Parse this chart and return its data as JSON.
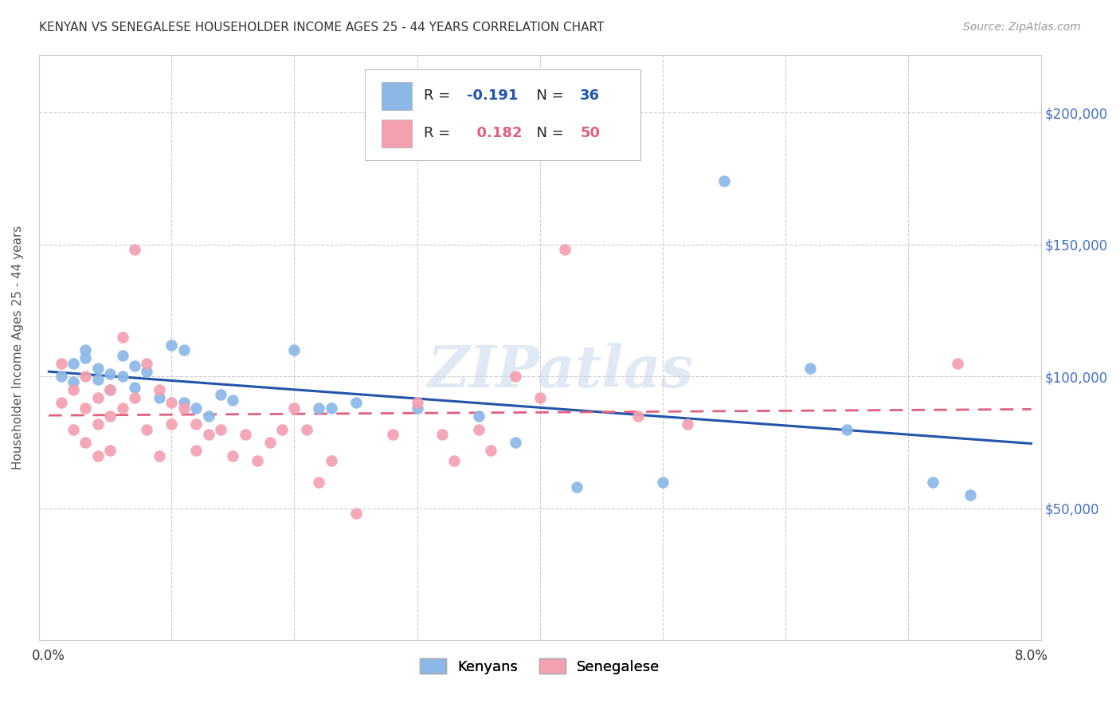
{
  "title": "KENYAN VS SENEGALESE HOUSEHOLDER INCOME AGES 25 - 44 YEARS CORRELATION CHART",
  "source": "Source: ZipAtlas.com",
  "ylabel": "Householder Income Ages 25 - 44 years",
  "xlim": [
    0.0,
    0.08
  ],
  "ylim": [
    0,
    220000
  ],
  "yticks": [
    50000,
    100000,
    150000,
    200000
  ],
  "ytick_labels": [
    "$50,000",
    "$100,000",
    "$150,000",
    "$200,000"
  ],
  "xticks": [
    0.0,
    0.01,
    0.02,
    0.03,
    0.04,
    0.05,
    0.06,
    0.07,
    0.08
  ],
  "xtick_labels": [
    "0.0%",
    "",
    "",
    "",
    "",
    "",
    "",
    "",
    "8.0%"
  ],
  "kenyan_color": "#8CB8E8",
  "senegalese_color": "#F4A0B0",
  "kenyan_line_color": "#2255AA",
  "senegalese_line_color": "#E06080",
  "kenyan_R": -0.191,
  "kenyan_N": 36,
  "senegalese_R": 0.182,
  "senegalese_N": 50,
  "watermark": "ZIPatlas",
  "background_color": "#ffffff",
  "kenyan_x": [
    0.001,
    0.002,
    0.002,
    0.003,
    0.003,
    0.004,
    0.004,
    0.005,
    0.005,
    0.006,
    0.006,
    0.007,
    0.007,
    0.008,
    0.009,
    0.01,
    0.011,
    0.011,
    0.012,
    0.013,
    0.014,
    0.015,
    0.02,
    0.022,
    0.023,
    0.025,
    0.03,
    0.035,
    0.038,
    0.043,
    0.05,
    0.055,
    0.062,
    0.065,
    0.072,
    0.075
  ],
  "kenyan_y": [
    100000,
    105000,
    98000,
    110000,
    107000,
    103000,
    99000,
    101000,
    95000,
    108000,
    100000,
    104000,
    96000,
    102000,
    92000,
    112000,
    110000,
    90000,
    88000,
    85000,
    93000,
    91000,
    110000,
    88000,
    88000,
    90000,
    88000,
    85000,
    75000,
    58000,
    60000,
    174000,
    103000,
    80000,
    60000,
    55000
  ],
  "senegalese_x": [
    0.001,
    0.001,
    0.002,
    0.002,
    0.003,
    0.003,
    0.003,
    0.004,
    0.004,
    0.004,
    0.005,
    0.005,
    0.005,
    0.006,
    0.006,
    0.007,
    0.007,
    0.008,
    0.008,
    0.009,
    0.009,
    0.01,
    0.01,
    0.011,
    0.012,
    0.012,
    0.013,
    0.014,
    0.015,
    0.016,
    0.017,
    0.018,
    0.019,
    0.02,
    0.021,
    0.022,
    0.023,
    0.025,
    0.028,
    0.03,
    0.032,
    0.033,
    0.035,
    0.036,
    0.038,
    0.04,
    0.042,
    0.048,
    0.052,
    0.074
  ],
  "senegalese_y": [
    105000,
    90000,
    95000,
    80000,
    100000,
    88000,
    75000,
    92000,
    82000,
    70000,
    95000,
    85000,
    72000,
    115000,
    88000,
    148000,
    92000,
    105000,
    80000,
    95000,
    70000,
    90000,
    82000,
    88000,
    82000,
    72000,
    78000,
    80000,
    70000,
    78000,
    68000,
    75000,
    80000,
    88000,
    80000,
    60000,
    68000,
    48000,
    78000,
    90000,
    78000,
    68000,
    80000,
    72000,
    100000,
    92000,
    148000,
    85000,
    82000,
    105000
  ]
}
